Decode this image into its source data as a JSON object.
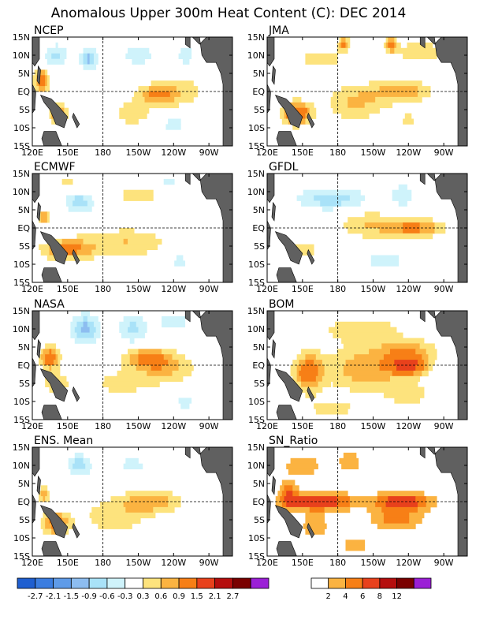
{
  "title": "Anomalous Upper 300m Heat Content (C): DEC 2014",
  "x_ticks": [
    "120E",
    "150E",
    "180",
    "150W",
    "120W",
    "90W"
  ],
  "y_ticks": [
    "15N",
    "10N",
    "5N",
    "EQ",
    "5S",
    "10S",
    "15S"
  ],
  "colors": {
    "neg": [
      "#1f5fd0",
      "#3b7de0",
      "#5f9be8",
      "#8dbdf0",
      "#a9e2f8",
      "#cff3fb"
    ],
    "pos": [
      "#fde37d",
      "#fbb341",
      "#f77f16",
      "#e8411c",
      "#b50e0e",
      "#7a0000",
      "#9b1fd6"
    ],
    "ratio": [
      "#ffffff",
      "#fbb341",
      "#f77f16",
      "#e8411c",
      "#b50e0e",
      "#7a0000",
      "#9b1fd6"
    ],
    "land": "#606060"
  },
  "chart_data": [
    {
      "type": "heatmap",
      "title": "NCEP",
      "blobs": [
        {
          "lon": 128,
          "lat": 3,
          "rx": 6,
          "ry": 3,
          "v": 1.3
        },
        {
          "lon": 142,
          "lat": -6,
          "rx": 8,
          "ry": 2.5,
          "v": 1.0
        },
        {
          "lon": 225,
          "lat": -1,
          "rx": 16,
          "ry": 2.5,
          "v": 0.85
        },
        {
          "lon": 205,
          "lat": -6,
          "rx": 15,
          "ry": 3,
          "v": 0.6
        },
        {
          "lon": 245,
          "lat": 0,
          "rx": 25,
          "ry": 5,
          "v": 0.45
        },
        {
          "lon": 168,
          "lat": 9,
          "rx": 7,
          "ry": 3,
          "v": -1.0
        },
        {
          "lon": 140,
          "lat": 10,
          "rx": 10,
          "ry": 3,
          "v": -0.7
        },
        {
          "lon": 210,
          "lat": 10,
          "rx": 15,
          "ry": 3,
          "v": -0.5
        },
        {
          "lon": 250,
          "lat": 10,
          "rx": 8,
          "ry": 3,
          "v": -0.5
        },
        {
          "lon": 240,
          "lat": -9,
          "rx": 15,
          "ry": 3,
          "v": -0.4
        }
      ]
    },
    {
      "type": "heatmap",
      "title": "JMA",
      "blobs": [
        {
          "lon": 145,
          "lat": -6,
          "rx": 12,
          "ry": 3,
          "v": 1.5
        },
        {
          "lon": 235,
          "lat": 0,
          "rx": 25,
          "ry": 3,
          "v": 0.8
        },
        {
          "lon": 195,
          "lat": -3,
          "rx": 25,
          "ry": 5,
          "v": 0.65
        },
        {
          "lon": 165,
          "lat": 9,
          "rx": 20,
          "ry": 3,
          "v": 0.5
        },
        {
          "lon": 250,
          "lat": 11,
          "rx": 25,
          "ry": 3,
          "v": 0.5
        },
        {
          "lon": 185,
          "lat": 13,
          "rx": 5,
          "ry": 2,
          "v": 1.0
        },
        {
          "lon": 225,
          "lat": 13,
          "rx": 5,
          "ry": 2,
          "v": 1.0
        },
        {
          "lon": 240,
          "lat": -8,
          "rx": 12,
          "ry": 3,
          "v": 0.35
        }
      ]
    },
    {
      "type": "heatmap",
      "title": "ECMWF",
      "blobs": [
        {
          "lon": 150,
          "lat": -6,
          "rx": 22,
          "ry": 3,
          "v": 1.0
        },
        {
          "lon": 200,
          "lat": -4,
          "rx": 35,
          "ry": 4,
          "v": 0.6
        },
        {
          "lon": 130,
          "lat": 3,
          "rx": 5,
          "ry": 2,
          "v": 0.9
        },
        {
          "lon": 210,
          "lat": 9,
          "rx": 20,
          "ry": 3,
          "v": 0.5
        },
        {
          "lon": 150,
          "lat": 12,
          "rx": 12,
          "ry": 2,
          "v": 0.4
        },
        {
          "lon": 160,
          "lat": 7,
          "rx": 12,
          "ry": 3,
          "v": -0.8
        },
        {
          "lon": 235,
          "lat": 13,
          "rx": 10,
          "ry": 2,
          "v": -0.4
        },
        {
          "lon": 245,
          "lat": -9,
          "rx": 10,
          "ry": 3,
          "v": -0.4
        }
      ]
    },
    {
      "type": "heatmap",
      "title": "GFDL",
      "blobs": [
        {
          "lon": 245,
          "lat": 0,
          "rx": 25,
          "ry": 2.5,
          "v": 1.0
        },
        {
          "lon": 205,
          "lat": 1,
          "rx": 25,
          "ry": 4,
          "v": 0.55
        },
        {
          "lon": 150,
          "lat": -6,
          "rx": 15,
          "ry": 3,
          "v": 0.5
        },
        {
          "lon": 175,
          "lat": 8,
          "rx": 30,
          "ry": 3,
          "v": -0.8
        },
        {
          "lon": 235,
          "lat": 9,
          "rx": 10,
          "ry": 3,
          "v": -0.6
        },
        {
          "lon": 220,
          "lat": -9,
          "rx": 25,
          "ry": 3,
          "v": -0.4
        }
      ]
    },
    {
      "type": "heatmap",
      "title": "NASA",
      "blobs": [
        {
          "lon": 135,
          "lat": 2,
          "rx": 8,
          "ry": 3,
          "v": 1.3
        },
        {
          "lon": 218,
          "lat": 2,
          "rx": 20,
          "ry": 3,
          "v": 0.95
        },
        {
          "lon": 235,
          "lat": -1,
          "rx": 25,
          "ry": 4,
          "v": 0.6
        },
        {
          "lon": 140,
          "lat": -5,
          "rx": 12,
          "ry": 3,
          "v": 0.55
        },
        {
          "lon": 195,
          "lat": -5,
          "rx": 30,
          "ry": 4,
          "v": 0.4
        },
        {
          "lon": 165,
          "lat": 10,
          "rx": 12,
          "ry": 4,
          "v": -1.0
        },
        {
          "lon": 205,
          "lat": 10,
          "rx": 12,
          "ry": 4,
          "v": -0.7
        },
        {
          "lon": 240,
          "lat": 12,
          "rx": 15,
          "ry": 3,
          "v": -0.5
        },
        {
          "lon": 250,
          "lat": -10,
          "rx": 10,
          "ry": 3,
          "v": -0.4
        }
      ]
    },
    {
      "type": "heatmap",
      "title": "BOM",
      "blobs": [
        {
          "lon": 240,
          "lat": 0,
          "rx": 15,
          "ry": 2.5,
          "v": 1.6
        },
        {
          "lon": 155,
          "lat": -2,
          "rx": 12,
          "ry": 5,
          "v": 1.2
        },
        {
          "lon": 205,
          "lat": -1,
          "rx": 35,
          "ry": 6,
          "v": 0.85
        },
        {
          "lon": 240,
          "lat": 4,
          "rx": 25,
          "ry": 3,
          "v": 0.7
        },
        {
          "lon": 200,
          "lat": 10,
          "rx": 40,
          "ry": 4,
          "v": 0.45
        },
        {
          "lon": 240,
          "lat": -8,
          "rx": 18,
          "ry": 3,
          "v": 0.5
        },
        {
          "lon": 175,
          "lat": -12,
          "rx": 25,
          "ry": 3,
          "v": 0.4
        }
      ]
    },
    {
      "type": "heatmap",
      "title": "ENS. Mean",
      "blobs": [
        {
          "lon": 140,
          "lat": -6,
          "rx": 12,
          "ry": 3,
          "v": 1.1
        },
        {
          "lon": 222,
          "lat": 0,
          "rx": 25,
          "ry": 3,
          "v": 0.8
        },
        {
          "lon": 190,
          "lat": -4,
          "rx": 30,
          "ry": 5,
          "v": 0.5
        },
        {
          "lon": 130,
          "lat": 2,
          "rx": 5,
          "ry": 2,
          "v": 0.9
        },
        {
          "lon": 160,
          "lat": 10,
          "rx": 10,
          "ry": 3,
          "v": -0.8
        },
        {
          "lon": 205,
          "lat": 10,
          "rx": 15,
          "ry": 3,
          "v": -0.4
        },
        {
          "lon": 250,
          "lat": 10,
          "rx": 10,
          "ry": 3,
          "v": -0.3
        },
        {
          "lon": 240,
          "lat": -9,
          "rx": 15,
          "ry": 3,
          "v": -0.3
        }
      ]
    },
    {
      "type": "heatmap",
      "title": "SN_Ratio",
      "blobs": [
        {
          "lon": 165,
          "lat": 0,
          "rx": 30,
          "ry": 2.5,
          "v": 8
        },
        {
          "lon": 235,
          "lat": 0,
          "rx": 25,
          "ry": 2.5,
          "v": 8
        },
        {
          "lon": 138,
          "lat": 2,
          "rx": 8,
          "ry": 4,
          "v": 5
        },
        {
          "lon": 230,
          "lat": -5,
          "rx": 22,
          "ry": 3,
          "v": 5
        },
        {
          "lon": 150,
          "lat": 10,
          "rx": 15,
          "ry": 3,
          "v": 4
        },
        {
          "lon": 190,
          "lat": 11,
          "rx": 10,
          "ry": 3,
          "v": 4
        },
        {
          "lon": 160,
          "lat": -7,
          "rx": 15,
          "ry": 4,
          "v": 3
        },
        {
          "lon": 195,
          "lat": -12,
          "rx": 15,
          "ry": 2,
          "v": 3
        }
      ]
    }
  ],
  "colorbar_left": {
    "labels": [
      "-2.7",
      "-2.1",
      "-1.5",
      "-0.9",
      "-0.6",
      "-0.3",
      "0.3",
      "0.6",
      "0.9",
      "1.5",
      "2.1",
      "2.7"
    ]
  },
  "colorbar_right": {
    "labels": [
      "2",
      "4",
      "6",
      "8",
      "12"
    ]
  }
}
